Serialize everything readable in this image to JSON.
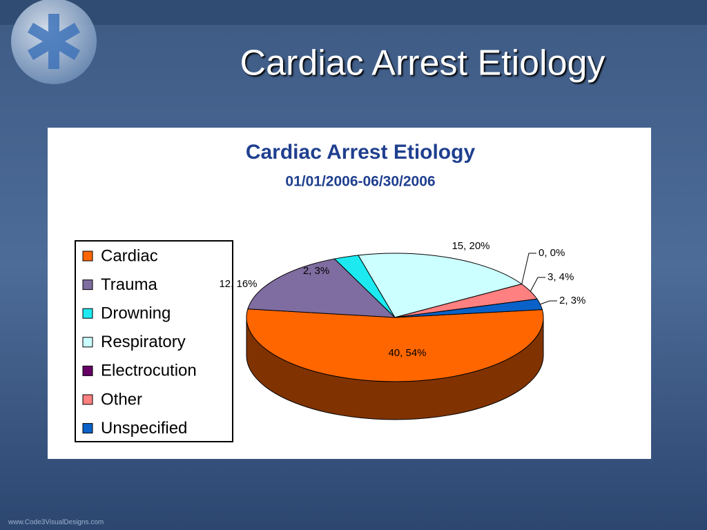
{
  "slide_title": "Cardiac Arrest Etiology",
  "footer": "www.Code3VisualDesigns.com",
  "chart_data": {
    "type": "pie",
    "title": "Cardiac Arrest Etiology",
    "subtitle": "01/01/2006-06/30/2006",
    "categories": [
      "Cardiac",
      "Trauma",
      "Drowning",
      "Respiratory",
      "Electrocution",
      "Other",
      "Unspecified"
    ],
    "values": [
      40,
      12,
      2,
      15,
      0,
      3,
      2
    ],
    "value_labels": [
      "40, 54%",
      "12, 16%",
      "2, 3%",
      "15, 20%",
      "0, 0%",
      "3, 4%",
      "2, 3%"
    ],
    "colors": [
      "#ff6600",
      "#7f6ca0",
      "#1de9f0",
      "#ccffff",
      "#660066",
      "#ff8080",
      "#0a62c8"
    ],
    "legend": "left"
  }
}
